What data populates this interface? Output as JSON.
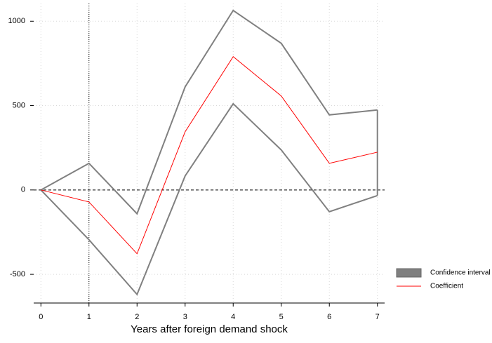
{
  "chart_data": {
    "type": "line",
    "x": [
      0,
      1,
      2,
      3,
      4,
      5,
      6,
      7
    ],
    "xlabel": "Years after foreign demand shock",
    "series": [
      {
        "name": "Confidence interval",
        "color": "#808080",
        "upper": [
          0,
          158,
          -141,
          611,
          1064,
          869,
          445,
          474
        ],
        "lower": [
          0,
          -295,
          -619,
          83,
          511,
          237,
          -129,
          -33
        ]
      },
      {
        "name": "Coefficient",
        "color": "#ff0000",
        "values": [
          0,
          -71,
          -378,
          345,
          790,
          557,
          158,
          224
        ]
      }
    ],
    "xlim": [
      -0.15,
      7.15
    ],
    "xticks": [
      0,
      1,
      2,
      3,
      4,
      5,
      6,
      7
    ],
    "ylim": [
      -670,
      1105
    ],
    "yticks": [
      -500,
      0,
      500,
      1000
    ],
    "hline": 0,
    "vline": 1,
    "grid": true,
    "legend": "lower right"
  }
}
